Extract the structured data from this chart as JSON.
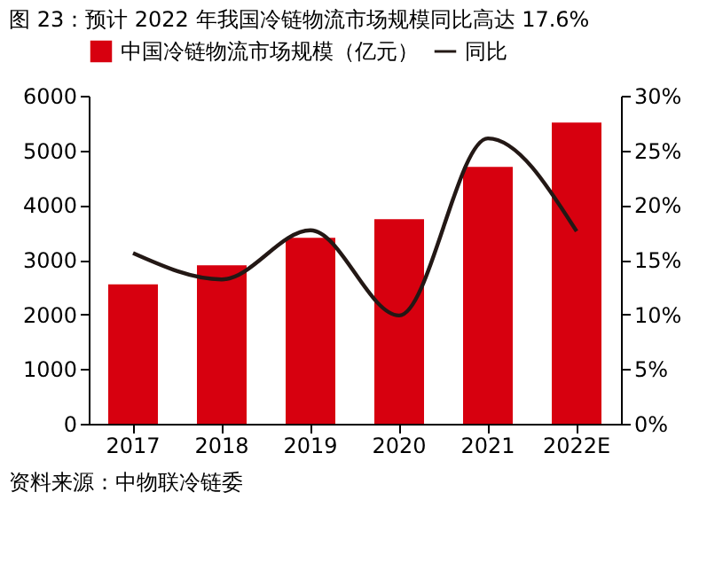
{
  "chart_data": {
    "type": "bar",
    "title": "图 23：预计 2022 年我国冷链物流市场规模同比高达 17.6%",
    "categories": [
      "2017",
      "2018",
      "2019",
      "2020",
      "2021",
      "2022E"
    ],
    "series": [
      {
        "name": "中国冷链物流市场规模（亿元）",
        "color": "#d7000f",
        "values": [
          2550,
          2900,
          3400,
          3740,
          4700,
          5510
        ]
      },
      {
        "name": "同比",
        "type": "line",
        "axis": "y2",
        "color": "#231815",
        "values": [
          15.6,
          13.2,
          17.7,
          9.9,
          26.1,
          17.6
        ]
      }
    ],
    "ylim": [
      0,
      6000
    ],
    "yticks": [
      0,
      1000,
      2000,
      3000,
      4000,
      5000,
      6000
    ],
    "y2lim": [
      0,
      30
    ],
    "y2ticks": [
      {
        "value": 0,
        "label": "0%"
      },
      {
        "value": 5,
        "label": "5%"
      },
      {
        "value": 10,
        "label": "10%"
      },
      {
        "value": 15,
        "label": "15%"
      },
      {
        "value": 20,
        "label": "20%"
      },
      {
        "value": 25,
        "label": "25%"
      },
      {
        "value": 30,
        "label": "30%"
      }
    ],
    "legend": "top",
    "grid": false,
    "marker": "none",
    "line_style": "solid",
    "annotations": [
      "资料来源：中物联冷链委"
    ]
  }
}
